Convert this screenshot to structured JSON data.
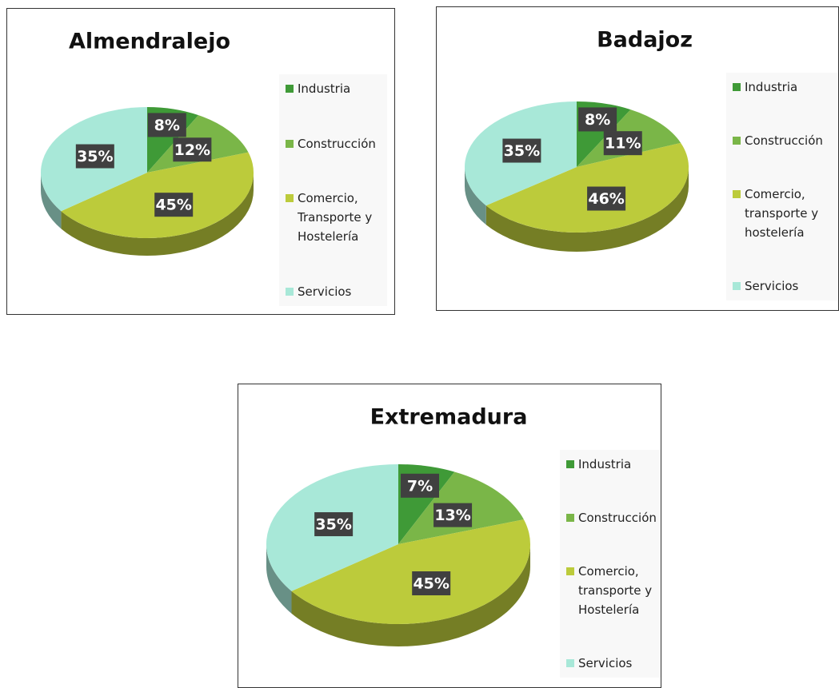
{
  "chart_data": [
    {
      "type": "pie",
      "title": "Almendralejo",
      "categories": [
        "Industria",
        "Construcción",
        "Comercio, Transporte y Hostelería",
        "Servicios"
      ],
      "values": [
        8,
        12,
        45,
        35
      ],
      "value_labels": [
        "8%",
        "12%",
        "45%",
        "35%"
      ],
      "colors": [
        "#3f9a37",
        "#7ab648",
        "#bccb3b",
        "#a8e8d8"
      ]
    },
    {
      "type": "pie",
      "title": "Badajoz",
      "categories": [
        "Industria",
        "Construcción",
        "Comercio, transporte y hostelería",
        "Servicios"
      ],
      "values": [
        8,
        11,
        46,
        35
      ],
      "value_labels": [
        "8%",
        "11%",
        "46%",
        "35%"
      ],
      "colors": [
        "#3f9a37",
        "#7ab648",
        "#bccb3b",
        "#a8e8d8"
      ]
    },
    {
      "type": "pie",
      "title": "Extremadura",
      "categories": [
        "Industria",
        "Construcción",
        "Comercio, transporte y Hostelería",
        "Servicios"
      ],
      "values": [
        7,
        13,
        45,
        35
      ],
      "value_labels": [
        "7%",
        "13%",
        "45%",
        "35%"
      ],
      "colors": [
        "#3f9a37",
        "#7ab648",
        "#bccb3b",
        "#a8e8d8"
      ]
    }
  ]
}
